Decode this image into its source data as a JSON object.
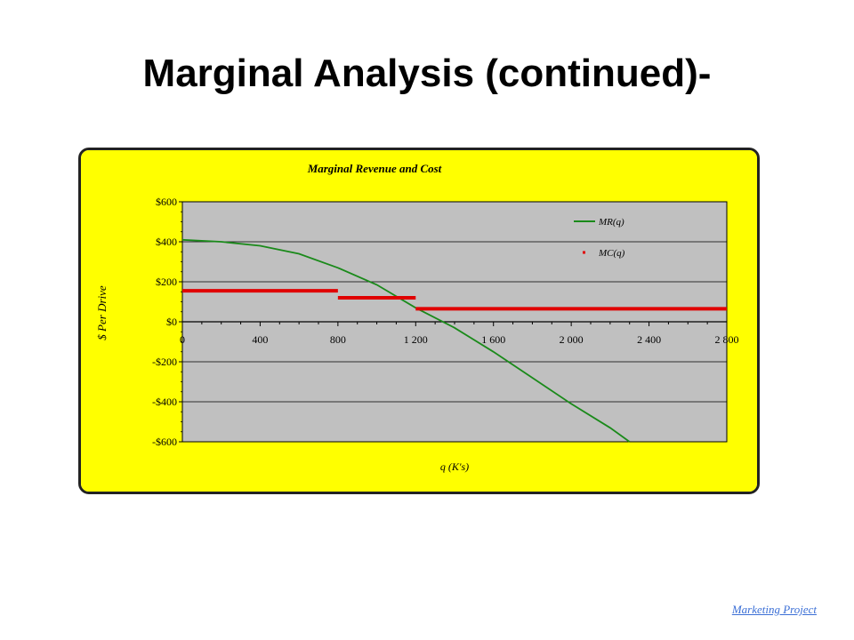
{
  "slide": {
    "title": "Marginal Analysis (continued)-",
    "footer_link": "Marketing  Project"
  },
  "colors": {
    "chart_background": "#ffff00",
    "plot_background": "#c0c0c0",
    "mr_line": "#1a8a1a",
    "mc_line": "#e00000",
    "link": "#3b6fd6"
  },
  "chart_data": {
    "type": "line",
    "title": "Marginal Revenue and Cost",
    "xlabel": "q  (K's)",
    "ylabel": "$ Per Drive",
    "xlim": [
      0,
      2800
    ],
    "ylim": [
      -600,
      600
    ],
    "x_ticks": [
      0,
      400,
      800,
      1200,
      1600,
      2000,
      2400,
      2800
    ],
    "x_tick_labels": [
      "0",
      "400",
      "800",
      "1 200",
      "1 600",
      "2 000",
      "2 400",
      "2 800"
    ],
    "y_ticks": [
      600,
      400,
      200,
      0,
      -200,
      -400,
      -600
    ],
    "y_tick_labels": [
      "$600",
      "$400",
      "$200",
      "$0",
      "-$200",
      "-$400",
      "-$600"
    ],
    "grid": true,
    "legend_position": "top-right",
    "series": [
      {
        "name": "MR(q)",
        "style": "line",
        "color": "#1a8a1a",
        "x": [
          0,
          200,
          400,
          600,
          800,
          1000,
          1200,
          1400,
          1600,
          1800,
          2000,
          2200,
          2300
        ],
        "y": [
          410,
          400,
          380,
          340,
          270,
          185,
          70,
          -30,
          -150,
          -280,
          -410,
          -530,
          -600
        ]
      },
      {
        "name": "MC(q)",
        "style": "step",
        "color": "#e00000",
        "segments": [
          {
            "x0": 0,
            "x1": 800,
            "y": 155
          },
          {
            "x0": 800,
            "x1": 1200,
            "y": 120
          },
          {
            "x0": 1200,
            "x1": 2800,
            "y": 65
          }
        ]
      }
    ]
  }
}
